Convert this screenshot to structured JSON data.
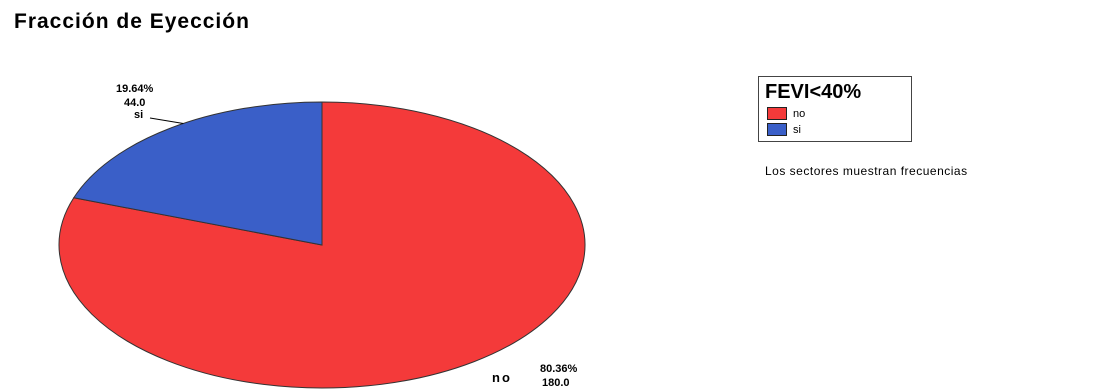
{
  "chart_data": {
    "type": "pie",
    "title": "Fracción de Eyección",
    "legend_title": "FEVI<40%",
    "legend_placement": "right",
    "footnote": "Los sectores muestran frecuencias",
    "slices": [
      {
        "name": "no",
        "value": 180.0,
        "value_label": "180.0",
        "percent_label": "80.36%",
        "color": "#f43a3a"
      },
      {
        "name": "si",
        "value": 44.0,
        "value_label": "44.0",
        "percent_label": "19.64%",
        "color": "#3a5fc8"
      }
    ]
  }
}
